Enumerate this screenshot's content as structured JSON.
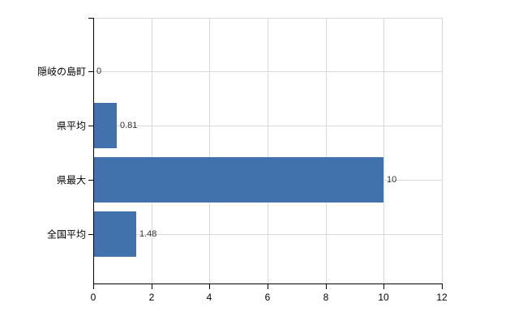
{
  "chart_data": {
    "type": "bar",
    "orientation": "horizontal",
    "categories": [
      "隠岐の島町",
      "県平均",
      "県最大",
      "全国平均"
    ],
    "values": [
      0,
      0.81,
      10,
      1.48
    ],
    "value_labels": [
      "0",
      "0.81",
      "10",
      "1.48"
    ],
    "xlim": [
      0,
      12
    ],
    "x_ticks": [
      0,
      2,
      4,
      6,
      8,
      10,
      12
    ],
    "x_tick_labels": [
      "0",
      "2",
      "4",
      "6",
      "8",
      "10",
      "12"
    ],
    "grid": true,
    "legend": "none",
    "bar_color": "#4272ab",
    "grid_color": "#d9d9d9",
    "axis_color": "#000000",
    "value_label_color": "#333333",
    "tick_label_color": "#000000"
  }
}
